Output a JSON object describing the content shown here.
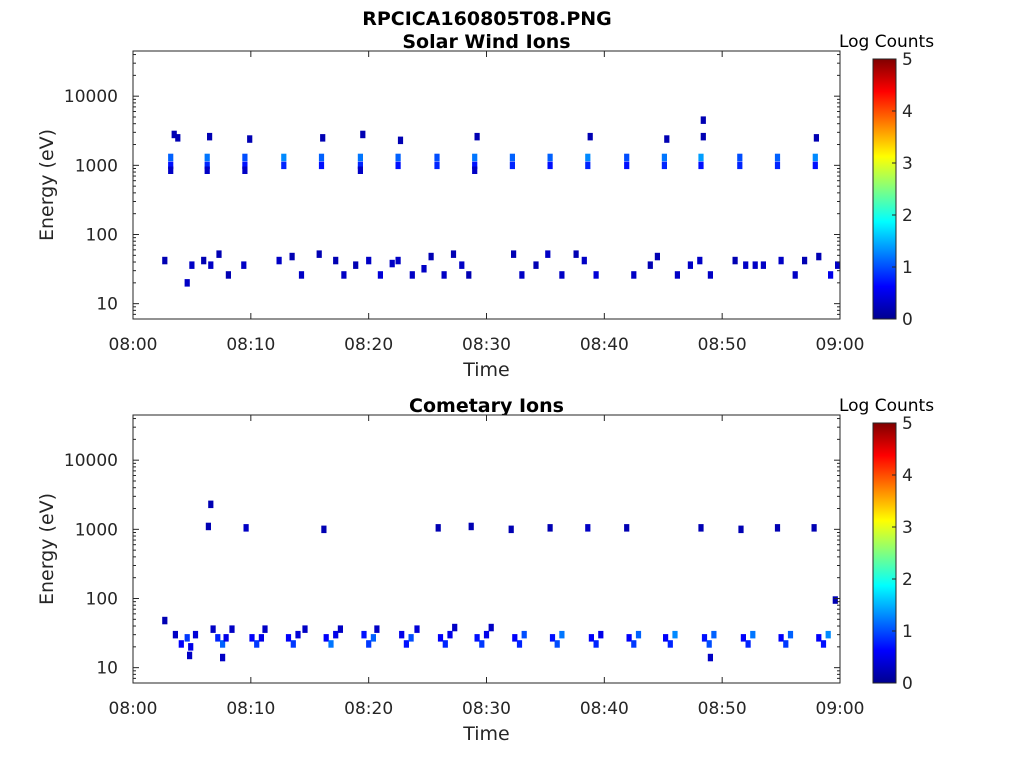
{
  "figure_title": "RPCICA160805T08.PNG",
  "colormap": [
    "#00008F",
    "#0000FF",
    "#0080FF",
    "#00FFFF",
    "#80FF80",
    "#FFFF00",
    "#FF8000",
    "#FF0000",
    "#800000"
  ],
  "chart_data": [
    {
      "type": "heatmap",
      "title": "Solar Wind Ions",
      "xlabel": "Time",
      "ylabel": "Energy (eV)",
      "x_tick_labels": [
        "08:00",
        "08:10",
        "08:20",
        "08:30",
        "08:40",
        "08:50",
        "09:00"
      ],
      "x_ticks_minutes": [
        0,
        10,
        20,
        30,
        40,
        50,
        60
      ],
      "xlim_minutes": [
        0,
        60
      ],
      "y_scale": "log",
      "ylim": [
        6,
        45000
      ],
      "y_tick_labels": [
        "10",
        "100",
        "1000",
        "10000"
      ],
      "y_ticks": [
        10,
        100,
        1000,
        10000
      ],
      "colorbar": {
        "label": "Log Counts",
        "range": [
          0,
          5
        ],
        "tick_labels": [
          "0",
          "1",
          "2",
          "3",
          "4",
          "5"
        ]
      },
      "cells": [
        [
          3.2,
          1000,
          0.7
        ],
        [
          3.2,
          1300,
          1.1
        ],
        [
          3.2,
          850,
          0.3
        ],
        [
          3.5,
          2800,
          0.2
        ],
        [
          3.8,
          2500,
          0.2
        ],
        [
          6.3,
          1000,
          0.8
        ],
        [
          6.3,
          1300,
          1.2
        ],
        [
          6.3,
          850,
          0.3
        ],
        [
          6.5,
          2600,
          0.2
        ],
        [
          9.5,
          1000,
          0.7
        ],
        [
          9.5,
          1300,
          1.0
        ],
        [
          9.5,
          850,
          0.3
        ],
        [
          9.9,
          2400,
          0.2
        ],
        [
          12.8,
          1000,
          0.8
        ],
        [
          12.8,
          1300,
          1.3
        ],
        [
          16.0,
          1000,
          0.7
        ],
        [
          16.0,
          1300,
          1.1
        ],
        [
          16.1,
          2500,
          0.2
        ],
        [
          19.3,
          1000,
          0.8
        ],
        [
          19.3,
          1300,
          1.2
        ],
        [
          19.3,
          850,
          0.3
        ],
        [
          19.5,
          2800,
          0.2
        ],
        [
          22.5,
          1000,
          0.7
        ],
        [
          22.5,
          1300,
          1.1
        ],
        [
          22.7,
          2300,
          0.2
        ],
        [
          25.8,
          1000,
          0.8
        ],
        [
          25.8,
          1300,
          1.0
        ],
        [
          29.0,
          1000,
          0.7
        ],
        [
          29.0,
          1300,
          1.2
        ],
        [
          29.0,
          850,
          0.3
        ],
        [
          29.2,
          2600,
          0.2
        ],
        [
          32.2,
          1000,
          0.8
        ],
        [
          32.2,
          1300,
          1.1
        ],
        [
          35.4,
          1000,
          0.7
        ],
        [
          35.4,
          1300,
          1.1
        ],
        [
          38.6,
          1000,
          0.8
        ],
        [
          38.6,
          1300,
          1.3
        ],
        [
          38.8,
          2600,
          0.2
        ],
        [
          41.9,
          1000,
          0.7
        ],
        [
          41.9,
          1300,
          1.0
        ],
        [
          45.1,
          1000,
          0.8
        ],
        [
          45.1,
          1300,
          1.2
        ],
        [
          45.3,
          2400,
          0.2
        ],
        [
          48.2,
          1000,
          0.7
        ],
        [
          48.2,
          1300,
          1.4
        ],
        [
          48.4,
          2600,
          0.2
        ],
        [
          48.4,
          4500,
          0.2
        ],
        [
          51.5,
          1000,
          0.8
        ],
        [
          51.5,
          1300,
          1.0
        ],
        [
          54.7,
          1000,
          0.8
        ],
        [
          54.7,
          1300,
          1.1
        ],
        [
          57.9,
          1000,
          0.7
        ],
        [
          57.9,
          1300,
          1.3
        ],
        [
          58.0,
          2500,
          0.2
        ],
        [
          2.7,
          42,
          0.2
        ],
        [
          4.6,
          20,
          0.3
        ],
        [
          5.0,
          36,
          0.3
        ],
        [
          6.0,
          42,
          0.2
        ],
        [
          6.6,
          36,
          0.3
        ],
        [
          7.3,
          52,
          0.2
        ],
        [
          8.1,
          26,
          0.2
        ],
        [
          9.4,
          36,
          0.3
        ],
        [
          12.4,
          42,
          0.3
        ],
        [
          13.5,
          48,
          0.2
        ],
        [
          14.3,
          26,
          0.3
        ],
        [
          15.8,
          52,
          0.2
        ],
        [
          17.2,
          42,
          0.2
        ],
        [
          17.9,
          26,
          0.3
        ],
        [
          18.9,
          36,
          0.2
        ],
        [
          20.0,
          42,
          0.3
        ],
        [
          21.0,
          26,
          0.4
        ],
        [
          22.0,
          38,
          0.3
        ],
        [
          22.5,
          42,
          0.3
        ],
        [
          23.7,
          26,
          0.3
        ],
        [
          24.7,
          32,
          0.3
        ],
        [
          25.3,
          48,
          0.2
        ],
        [
          26.4,
          26,
          0.3
        ],
        [
          27.2,
          52,
          0.2
        ],
        [
          27.9,
          36,
          0.3
        ],
        [
          28.5,
          26,
          0.2
        ],
        [
          32.3,
          52,
          0.2
        ],
        [
          33.0,
          26,
          0.3
        ],
        [
          34.2,
          36,
          0.2
        ],
        [
          35.2,
          52,
          0.3
        ],
        [
          36.4,
          26,
          0.3
        ],
        [
          37.6,
          52,
          0.2
        ],
        [
          38.3,
          42,
          0.3
        ],
        [
          39.3,
          26,
          0.4
        ],
        [
          42.5,
          26,
          0.3
        ],
        [
          43.9,
          36,
          0.2
        ],
        [
          44.5,
          48,
          0.2
        ],
        [
          46.2,
          26,
          0.3
        ],
        [
          47.3,
          36,
          0.3
        ],
        [
          48.1,
          42,
          0.3
        ],
        [
          49.0,
          26,
          0.3
        ],
        [
          51.1,
          42,
          0.2
        ],
        [
          52.0,
          36,
          0.3
        ],
        [
          52.8,
          36,
          0.3
        ],
        [
          53.5,
          36,
          0.3
        ],
        [
          55.0,
          42,
          0.3
        ],
        [
          56.2,
          26,
          0.3
        ],
        [
          57.0,
          42,
          0.2
        ],
        [
          58.2,
          48,
          0.2
        ],
        [
          59.2,
          26,
          0.5
        ],
        [
          59.8,
          36,
          0.3
        ]
      ]
    },
    {
      "type": "heatmap",
      "title": "Cometary Ions",
      "xlabel": "Time",
      "ylabel": "Energy (eV)",
      "x_tick_labels": [
        "08:00",
        "08:10",
        "08:20",
        "08:30",
        "08:40",
        "08:50",
        "09:00"
      ],
      "x_ticks_minutes": [
        0,
        10,
        20,
        30,
        40,
        50,
        60
      ],
      "xlim_minutes": [
        0,
        60
      ],
      "y_scale": "log",
      "ylim": [
        6,
        45000
      ],
      "y_tick_labels": [
        "10",
        "100",
        "1000",
        "10000"
      ],
      "y_ticks": [
        10,
        100,
        1000,
        10000
      ],
      "colorbar": {
        "label": "Log Counts",
        "range": [
          0,
          5
        ],
        "tick_labels": [
          "0",
          "1",
          "2",
          "3",
          "4",
          "5"
        ]
      },
      "cells": [
        [
          2.7,
          48,
          0.2
        ],
        [
          3.6,
          30,
          0.3
        ],
        [
          4.1,
          22,
          0.6
        ],
        [
          4.6,
          27,
          0.9
        ],
        [
          4.9,
          20,
          0.5
        ],
        [
          5.3,
          30,
          0.4
        ],
        [
          4.8,
          15,
          0.3
        ],
        [
          6.4,
          1100,
          0.2
        ],
        [
          6.6,
          2300,
          0.2
        ],
        [
          6.8,
          36,
          0.3
        ],
        [
          7.2,
          27,
          0.8
        ],
        [
          7.6,
          22,
          1.1
        ],
        [
          7.9,
          27,
          0.5
        ],
        [
          7.6,
          14,
          0.3
        ],
        [
          8.4,
          36,
          0.3
        ],
        [
          9.6,
          1050,
          0.3
        ],
        [
          10.1,
          27,
          0.6
        ],
        [
          10.5,
          22,
          0.9
        ],
        [
          10.9,
          27,
          0.5
        ],
        [
          11.2,
          36,
          0.3
        ],
        [
          13.2,
          27,
          0.6
        ],
        [
          13.6,
          22,
          0.9
        ],
        [
          14.0,
          30,
          0.4
        ],
        [
          14.6,
          36,
          0.3
        ],
        [
          16.2,
          1000,
          0.2
        ],
        [
          16.4,
          27,
          0.6
        ],
        [
          16.8,
          22,
          1.2
        ],
        [
          17.2,
          30,
          0.5
        ],
        [
          17.6,
          36,
          0.3
        ],
        [
          19.6,
          30,
          0.7
        ],
        [
          20.0,
          22,
          0.9
        ],
        [
          20.4,
          27,
          1.1
        ],
        [
          20.7,
          36,
          0.3
        ],
        [
          22.8,
          30,
          0.5
        ],
        [
          23.2,
          22,
          0.7
        ],
        [
          23.6,
          27,
          1.0
        ],
        [
          24.1,
          36,
          0.4
        ],
        [
          25.9,
          1050,
          0.2
        ],
        [
          26.1,
          27,
          0.6
        ],
        [
          26.5,
          22,
          0.8
        ],
        [
          26.9,
          30,
          0.5
        ],
        [
          27.3,
          38,
          0.3
        ],
        [
          28.7,
          1100,
          0.2
        ],
        [
          29.2,
          27,
          0.7
        ],
        [
          29.6,
          22,
          0.9
        ],
        [
          30.0,
          30,
          0.5
        ],
        [
          30.4,
          38,
          0.3
        ],
        [
          32.1,
          1000,
          0.2
        ],
        [
          32.4,
          27,
          0.6
        ],
        [
          32.8,
          22,
          0.8
        ],
        [
          33.2,
          30,
          1.0
        ],
        [
          35.4,
          1050,
          0.2
        ],
        [
          35.6,
          27,
          0.7
        ],
        [
          36.0,
          22,
          1.0
        ],
        [
          36.4,
          30,
          1.2
        ],
        [
          38.6,
          1050,
          0.3
        ],
        [
          38.9,
          27,
          0.6
        ],
        [
          39.3,
          22,
          0.8
        ],
        [
          39.7,
          30,
          0.5
        ],
        [
          41.9,
          1050,
          0.2
        ],
        [
          42.1,
          27,
          0.6
        ],
        [
          42.5,
          22,
          0.9
        ],
        [
          42.9,
          30,
          1.1
        ],
        [
          45.2,
          27,
          0.6
        ],
        [
          45.6,
          22,
          0.8
        ],
        [
          46.0,
          30,
          1.3
        ],
        [
          48.2,
          1050,
          0.2
        ],
        [
          48.5,
          27,
          0.7
        ],
        [
          48.9,
          22,
          1.0
        ],
        [
          49.3,
          30,
          1.1
        ],
        [
          49.0,
          14,
          0.3
        ],
        [
          51.6,
          1000,
          0.2
        ],
        [
          51.8,
          27,
          0.6
        ],
        [
          52.2,
          22,
          0.8
        ],
        [
          52.6,
          30,
          1.2
        ],
        [
          54.7,
          1050,
          0.2
        ],
        [
          55.0,
          27,
          0.6
        ],
        [
          55.4,
          22,
          0.9
        ],
        [
          55.8,
          30,
          1.1
        ],
        [
          57.8,
          1050,
          0.2
        ],
        [
          58.2,
          27,
          0.6
        ],
        [
          58.6,
          22,
          0.7
        ],
        [
          59.0,
          30,
          1.3
        ],
        [
          59.6,
          95,
          0.2
        ]
      ]
    }
  ]
}
